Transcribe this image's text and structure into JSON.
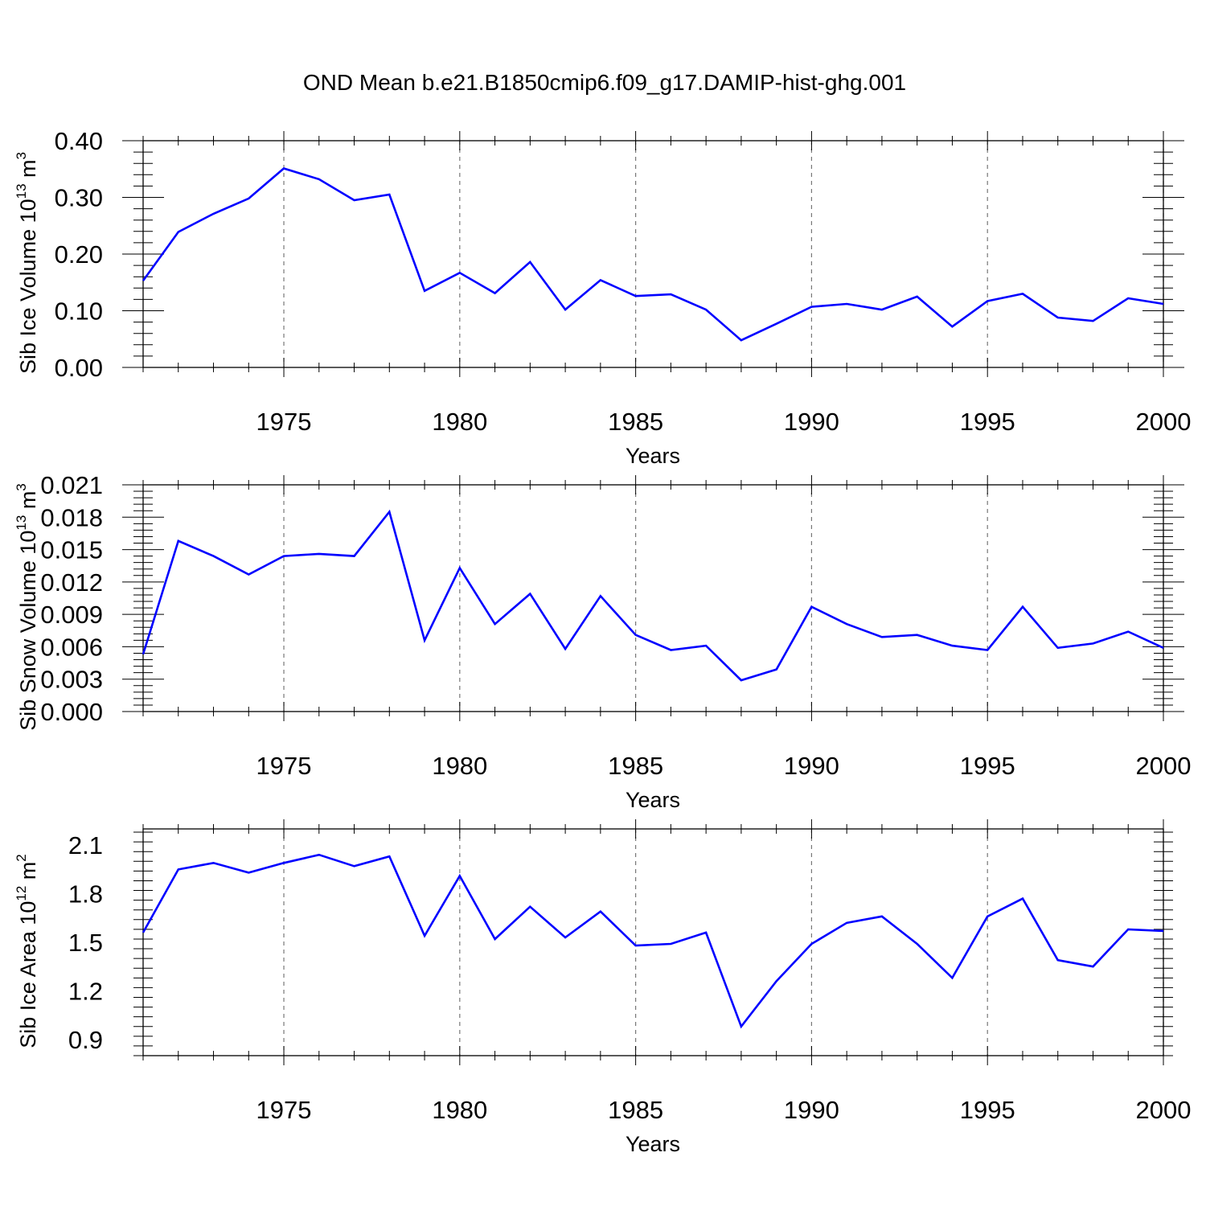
{
  "title": "OND Mean b.e21.B1850cmip6.f09_g17.DAMIP-hist-ghg.001",
  "line_color": "#0000ff",
  "chart_data": [
    {
      "type": "line",
      "xlabel": "Years",
      "ylabel": {
        "main": "Sib Ice Volume 10",
        "sup1": "13",
        "mid": " m",
        "sup2": "3"
      },
      "xlim": [
        1971,
        2000
      ],
      "ylim": [
        0.0,
        0.4
      ],
      "x_ticks": [
        1975,
        1980,
        1985,
        1990,
        1995,
        2000
      ],
      "y_ticks": [
        "0.00",
        "0.10",
        "0.20",
        "0.30",
        "0.40"
      ],
      "y_tick_values": [
        0.0,
        0.1,
        0.2,
        0.3,
        0.4
      ],
      "grid": "vertical dashed at major x ticks",
      "x": [
        1971,
        1972,
        1973,
        1974,
        1975,
        1976,
        1977,
        1978,
        1979,
        1980,
        1981,
        1982,
        1983,
        1984,
        1985,
        1986,
        1987,
        1988,
        1989,
        1990,
        1991,
        1992,
        1993,
        1994,
        1995,
        1996,
        1997,
        1998,
        1999,
        2000
      ],
      "values": [
        0.153,
        0.239,
        0.271,
        0.298,
        0.351,
        0.332,
        0.295,
        0.305,
        0.135,
        0.167,
        0.131,
        0.186,
        0.102,
        0.154,
        0.126,
        0.129,
        0.102,
        0.048,
        0.077,
        0.107,
        0.112,
        0.102,
        0.125,
        0.072,
        0.117,
        0.13,
        0.088,
        0.082,
        0.122,
        0.112
      ]
    },
    {
      "type": "line",
      "xlabel": "Years",
      "ylabel": {
        "main": "Sib Snow Volume 10",
        "sup1": "13",
        "mid": " m",
        "sup2": "3"
      },
      "xlim": [
        1971,
        2000
      ],
      "ylim": [
        0.0,
        0.021
      ],
      "x_ticks": [
        1975,
        1980,
        1985,
        1990,
        1995,
        2000
      ],
      "y_ticks": [
        "0.000",
        "0.003",
        "0.006",
        "0.009",
        "0.012",
        "0.015",
        "0.018",
        "0.021"
      ],
      "y_tick_values": [
        0.0,
        0.003,
        0.006,
        0.009,
        0.012,
        0.015,
        0.018,
        0.021
      ],
      "grid": "vertical dashed at major x ticks",
      "x": [
        1971,
        1972,
        1973,
        1974,
        1975,
        1976,
        1977,
        1978,
        1979,
        1980,
        1981,
        1982,
        1983,
        1984,
        1985,
        1986,
        1987,
        1988,
        1989,
        1990,
        1991,
        1992,
        1993,
        1994,
        1995,
        1996,
        1997,
        1998,
        1999,
        2000
      ],
      "values": [
        0.0053,
        0.0158,
        0.0144,
        0.0127,
        0.0144,
        0.0146,
        0.0144,
        0.0185,
        0.0066,
        0.0133,
        0.0081,
        0.0109,
        0.0058,
        0.0107,
        0.0071,
        0.0057,
        0.0061,
        0.0029,
        0.0039,
        0.0097,
        0.0081,
        0.0069,
        0.0071,
        0.0061,
        0.0057,
        0.0097,
        0.0059,
        0.0063,
        0.0074,
        0.0059
      ]
    },
    {
      "type": "line",
      "xlabel": "Years",
      "ylabel": {
        "main": "Sib Ice Area 10",
        "sup1": "12",
        "mid": " m",
        "sup2": "2"
      },
      "xlim": [
        1971,
        2000
      ],
      "ylim": [
        0.8,
        2.2
      ],
      "x_ticks": [
        1975,
        1980,
        1985,
        1990,
        1995,
        2000
      ],
      "y_ticks": [
        "0.9",
        "1.2",
        "1.5",
        "1.8",
        "2.1"
      ],
      "y_tick_values": [
        0.9,
        1.2,
        1.5,
        1.8,
        2.1
      ],
      "grid": "vertical dashed at major x ticks",
      "x": [
        1971,
        1972,
        1973,
        1974,
        1975,
        1976,
        1977,
        1978,
        1979,
        1980,
        1981,
        1982,
        1983,
        1984,
        1985,
        1986,
        1987,
        1988,
        1989,
        1990,
        1991,
        1992,
        1993,
        1994,
        1995,
        1996,
        1997,
        1998,
        1999,
        2000
      ],
      "values": [
        1.56,
        1.95,
        1.99,
        1.93,
        1.99,
        2.04,
        1.97,
        2.03,
        1.54,
        1.91,
        1.52,
        1.72,
        1.53,
        1.69,
        1.48,
        1.49,
        1.56,
        0.98,
        1.26,
        1.49,
        1.62,
        1.66,
        1.49,
        1.28,
        1.66,
        1.77,
        1.39,
        1.35,
        1.58,
        1.57
      ]
    }
  ]
}
